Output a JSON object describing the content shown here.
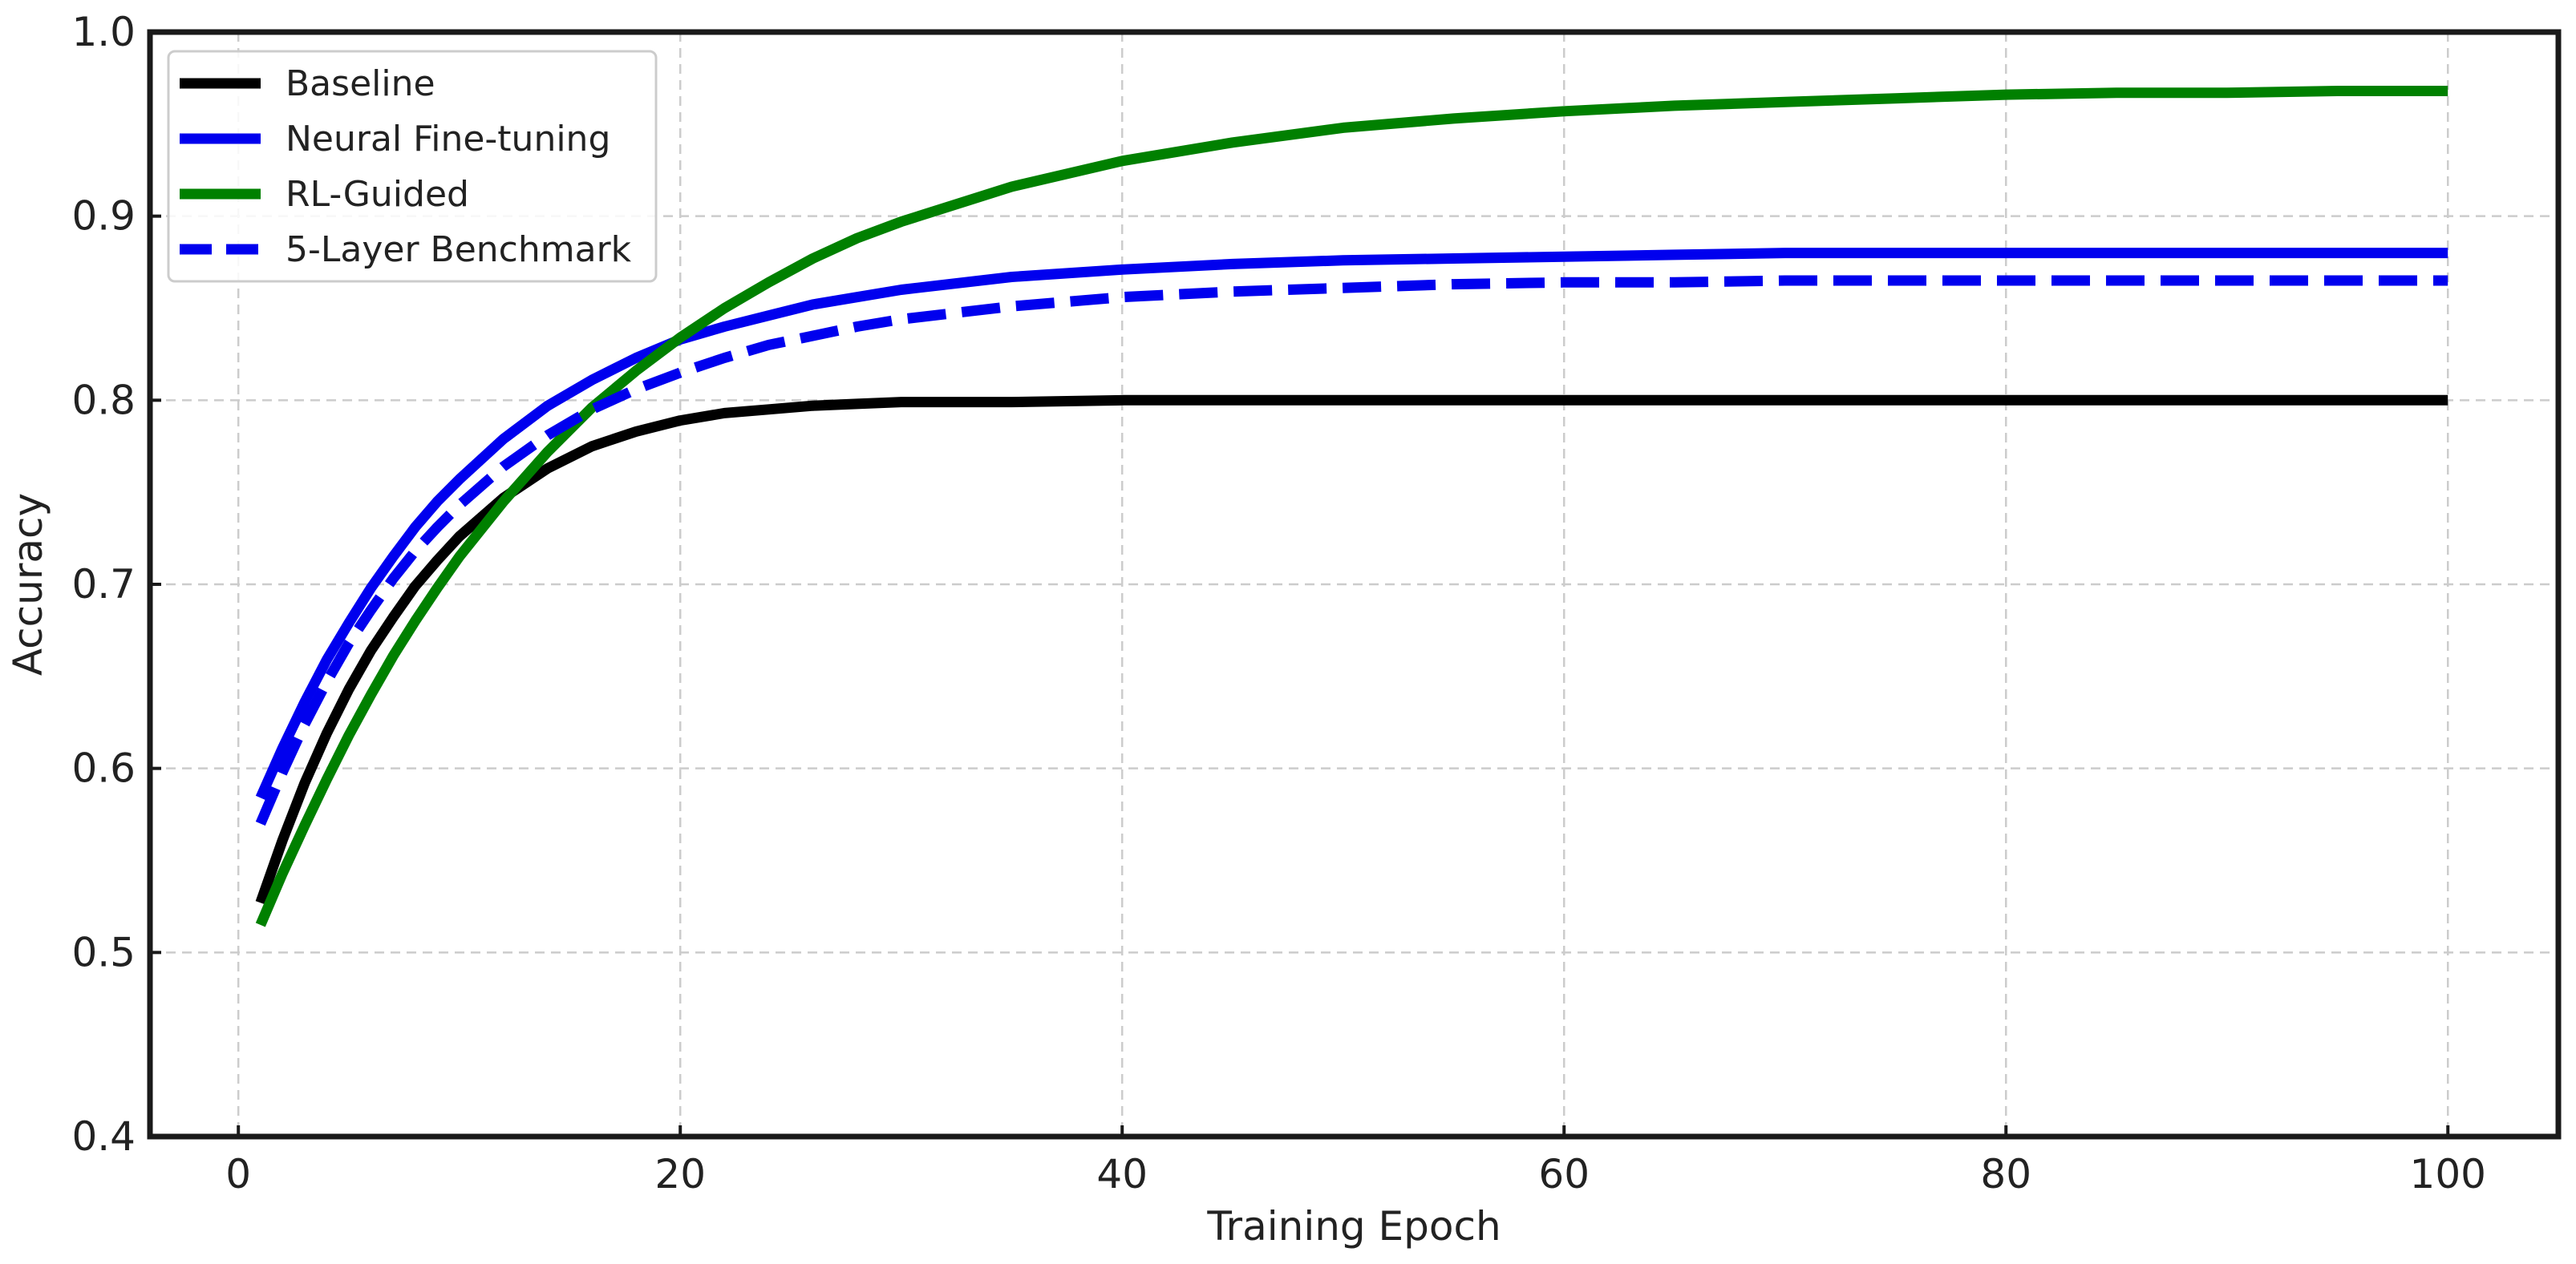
{
  "chart_data": {
    "type": "line",
    "xlabel": "Training Epoch",
    "ylabel": "Accuracy",
    "xlim": [
      -4,
      105
    ],
    "ylim": [
      0.4,
      1.0
    ],
    "xticks": [
      0,
      20,
      40,
      60,
      80,
      100
    ],
    "yticks": [
      0.4,
      0.5,
      0.6,
      0.7,
      0.8,
      0.9,
      1.0
    ],
    "grid": true,
    "legend_position": "top-left",
    "x": [
      1,
      2,
      3,
      4,
      5,
      6,
      7,
      8,
      9,
      10,
      12,
      14,
      16,
      18,
      20,
      22,
      24,
      26,
      28,
      30,
      35,
      40,
      45,
      50,
      55,
      60,
      65,
      70,
      75,
      80,
      85,
      90,
      95,
      100
    ],
    "series": [
      {
        "name": "Baseline",
        "color": "#000000",
        "dash": "solid",
        "values": [
          0.527,
          0.561,
          0.592,
          0.619,
          0.643,
          0.664,
          0.682,
          0.699,
          0.713,
          0.726,
          0.747,
          0.763,
          0.775,
          0.783,
          0.789,
          0.793,
          0.795,
          0.797,
          0.798,
          0.799,
          0.799,
          0.8,
          0.8,
          0.8,
          0.8,
          0.8,
          0.8,
          0.8,
          0.8,
          0.8,
          0.8,
          0.8,
          0.8,
          0.8
        ]
      },
      {
        "name": "Neural Fine-tuning",
        "color": "#0000ee",
        "dash": "solid",
        "values": [
          0.584,
          0.611,
          0.636,
          0.659,
          0.679,
          0.698,
          0.715,
          0.731,
          0.745,
          0.757,
          0.779,
          0.797,
          0.811,
          0.823,
          0.833,
          0.84,
          0.846,
          0.852,
          0.856,
          0.86,
          0.867,
          0.871,
          0.874,
          0.876,
          0.877,
          0.878,
          0.879,
          0.88,
          0.88,
          0.88,
          0.88,
          0.88,
          0.88,
          0.88
        ]
      },
      {
        "name": "RL-Guided",
        "color": "#008000",
        "dash": "solid",
        "values": [
          0.515,
          0.543,
          0.569,
          0.594,
          0.618,
          0.64,
          0.661,
          0.68,
          0.698,
          0.715,
          0.745,
          0.772,
          0.796,
          0.816,
          0.834,
          0.85,
          0.864,
          0.877,
          0.888,
          0.897,
          0.916,
          0.93,
          0.94,
          0.948,
          0.953,
          0.957,
          0.96,
          0.962,
          0.964,
          0.966,
          0.967,
          0.967,
          0.968,
          0.968
        ]
      },
      {
        "name": "5-Layer Benchmark",
        "color": "#0000ee",
        "dash": "dashed",
        "values": [
          0.57,
          0.598,
          0.624,
          0.647,
          0.668,
          0.686,
          0.703,
          0.718,
          0.731,
          0.743,
          0.764,
          0.781,
          0.795,
          0.806,
          0.815,
          0.823,
          0.83,
          0.835,
          0.84,
          0.844,
          0.851,
          0.856,
          0.859,
          0.861,
          0.863,
          0.864,
          0.864,
          0.865,
          0.865,
          0.865,
          0.865,
          0.865,
          0.865,
          0.865
        ]
      }
    ]
  }
}
